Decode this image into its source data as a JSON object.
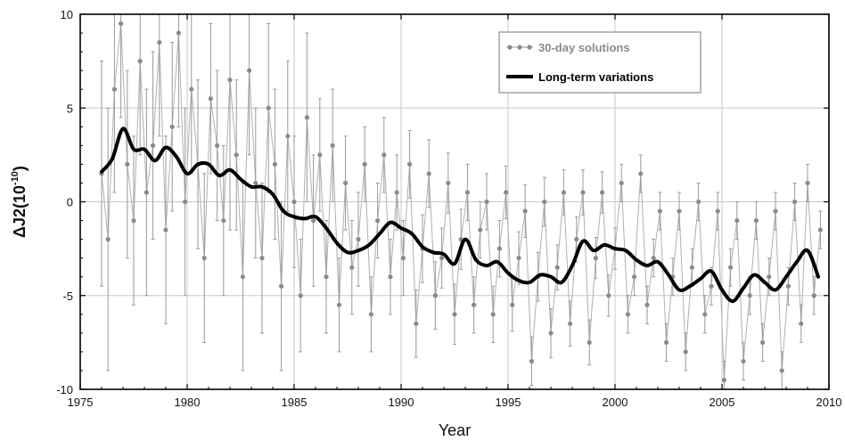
{
  "chart_data": {
    "type": "line",
    "xlabel": "Year",
    "ylabel": "ΔJ2(10",
    "ylabel_exponent": "-10",
    "ylabel_close": ")",
    "xlim": [
      1975,
      2010
    ],
    "ylim": [
      -10,
      10
    ],
    "x_ticks": [
      1975,
      1980,
      1985,
      1990,
      1995,
      2000,
      2005,
      2010
    ],
    "y_ticks": [
      -10,
      -5,
      0,
      5,
      10
    ],
    "x_tick_labels": [
      "1975",
      "1980",
      "1985",
      "1990",
      "1995",
      "2000",
      "2005",
      "2010"
    ],
    "y_tick_labels": [
      "-10",
      "-5",
      "0",
      "5",
      "10"
    ],
    "grid": true,
    "legend_position": "top-right",
    "series": [
      {
        "name": "30-day solutions",
        "style": "gray points with error bars",
        "color": "#8a8a8a",
        "x": [
          1976.0,
          1976.3,
          1976.6,
          1976.9,
          1977.2,
          1977.5,
          1977.8,
          1978.1,
          1978.4,
          1978.7,
          1979.0,
          1979.3,
          1979.6,
          1979.9,
          1980.2,
          1980.5,
          1980.8,
          1981.1,
          1981.4,
          1981.7,
          1982.0,
          1982.3,
          1982.6,
          1982.9,
          1983.2,
          1983.5,
          1983.8,
          1984.1,
          1984.4,
          1984.7,
          1985.0,
          1985.3,
          1985.6,
          1985.9,
          1986.2,
          1986.5,
          1986.8,
          1987.1,
          1987.4,
          1987.7,
          1988.0,
          1988.3,
          1988.6,
          1988.9,
          1989.2,
          1989.5,
          1989.8,
          1990.1,
          1990.4,
          1990.7,
          1991.0,
          1991.3,
          1991.6,
          1991.9,
          1992.2,
          1992.5,
          1992.8,
          1993.1,
          1993.4,
          1993.7,
          1994.0,
          1994.3,
          1994.6,
          1994.9,
          1995.2,
          1995.5,
          1995.8,
          1996.1,
          1996.4,
          1996.7,
          1997.0,
          1997.3,
          1997.6,
          1997.9,
          1998.2,
          1998.5,
          1998.8,
          1999.1,
          1999.4,
          1999.7,
          2000.0,
          2000.3,
          2000.6,
          2000.9,
          2001.2,
          2001.5,
          2001.8,
          2002.1,
          2002.4,
          2002.7,
          2003.0,
          2003.3,
          2003.6,
          2003.9,
          2004.2,
          2004.5,
          2004.8,
          2005.1,
          2005.4,
          2005.7,
          2006.0,
          2006.3,
          2006.6,
          2006.9,
          2007.2,
          2007.5,
          2007.8,
          2008.1,
          2008.4,
          2008.7,
          2009.0,
          2009.3,
          2009.6
        ],
        "y": [
          1.5,
          -2.0,
          6.0,
          9.5,
          2.0,
          -1.0,
          7.5,
          0.5,
          3.0,
          8.5,
          -1.5,
          4.0,
          9.0,
          0.0,
          6.0,
          2.0,
          -3.0,
          5.5,
          3.0,
          -1.0,
          6.5,
          2.5,
          -4.0,
          7.0,
          1.0,
          -3.0,
          5.0,
          2.0,
          -4.5,
          3.5,
          0.0,
          -5.0,
          4.5,
          -1.0,
          2.5,
          -4.0,
          3.0,
          -5.5,
          1.0,
          -3.5,
          -2.0,
          2.0,
          -6.0,
          -1.0,
          2.5,
          -4.0,
          0.5,
          -3.0,
          2.0,
          -6.5,
          -2.5,
          1.5,
          -5.0,
          -3.0,
          1.0,
          -6.0,
          -2.0,
          0.5,
          -5.5,
          -1.5,
          0.0,
          -6.0,
          -2.5,
          0.5,
          -5.5,
          -3.0,
          -0.5,
          -8.5,
          -4.0,
          0.0,
          -7.0,
          -3.5,
          0.5,
          -6.5,
          -2.0,
          0.5,
          -7.5,
          -3.0,
          0.5,
          -5.0,
          -2.5,
          1.0,
          -6.0,
          -4.0,
          1.5,
          -5.5,
          -3.0,
          -0.5,
          -7.5,
          -4.0,
          -0.5,
          -8.0,
          -3.5,
          0.0,
          -6.0,
          -4.5,
          -0.5,
          -9.5,
          -3.5,
          -1.0,
          -8.5,
          -5.0,
          -1.0,
          -7.5,
          -4.0,
          -0.5,
          -9.0,
          -4.5,
          0.0,
          -6.5,
          1.0,
          -5.0,
          -1.5
        ],
        "error": [
          6.0,
          7.0,
          5.5,
          5.0,
          5.0,
          4.5,
          5.0,
          5.5,
          5.0,
          5.0,
          5.0,
          4.5,
          5.0,
          5.0,
          4.5,
          4.5,
          4.5,
          4.0,
          4.0,
          4.0,
          8.0,
          4.0,
          5.0,
          4.5,
          4.0,
          4.0,
          4.5,
          4.0,
          4.5,
          4.0,
          3.5,
          3.0,
          4.5,
          3.5,
          3.0,
          3.0,
          3.0,
          2.5,
          2.5,
          2.5,
          2.5,
          2.0,
          2.0,
          2.0,
          2.0,
          2.0,
          2.0,
          2.0,
          1.8,
          1.8,
          1.8,
          1.8,
          1.8,
          1.6,
          1.6,
          1.6,
          1.6,
          1.5,
          1.5,
          1.5,
          1.5,
          1.5,
          1.5,
          1.4,
          1.4,
          1.4,
          1.4,
          1.3,
          1.3,
          1.3,
          1.3,
          1.2,
          1.2,
          1.2,
          1.2,
          1.2,
          1.2,
          1.1,
          1.1,
          1.1,
          1.1,
          1.0,
          1.0,
          1.0,
          1.0,
          1.0,
          1.0,
          1.0,
          1.0,
          1.0,
          1.0,
          1.0,
          1.0,
          1.0,
          1.0,
          1.0,
          1.0,
          1.0,
          1.0,
          1.0,
          1.0,
          1.0,
          1.0,
          1.0,
          1.0,
          1.0,
          1.0,
          1.0,
          1.0,
          1.0,
          1.0,
          1.0,
          1.0
        ]
      },
      {
        "name": "Long-term variations",
        "style": "thick black line",
        "color": "#000000",
        "x": [
          1976.0,
          1976.5,
          1977.0,
          1977.5,
          1978.0,
          1978.5,
          1979.0,
          1979.5,
          1980.0,
          1980.5,
          1981.0,
          1981.5,
          1982.0,
          1982.5,
          1983.0,
          1983.5,
          1984.0,
          1984.5,
          1985.0,
          1985.5,
          1986.0,
          1986.5,
          1987.0,
          1987.5,
          1988.0,
          1988.5,
          1989.0,
          1989.5,
          1990.0,
          1990.5,
          1991.0,
          1991.5,
          1992.0,
          1992.5,
          1993.0,
          1993.5,
          1994.0,
          1994.5,
          1995.0,
          1995.5,
          1996.0,
          1996.5,
          1997.0,
          1997.5,
          1998.0,
          1998.5,
          1999.0,
          1999.5,
          2000.0,
          2000.5,
          2001.0,
          2001.5,
          2002.0,
          2002.5,
          2003.0,
          2003.5,
          2004.0,
          2004.5,
          2005.0,
          2005.5,
          2006.0,
          2006.5,
          2007.0,
          2007.5,
          2008.0,
          2008.5,
          2009.0,
          2009.5
        ],
        "y": [
          1.6,
          2.3,
          3.9,
          2.8,
          2.8,
          2.2,
          2.9,
          2.4,
          1.5,
          2.0,
          2.0,
          1.4,
          1.7,
          1.2,
          0.8,
          0.8,
          0.4,
          -0.5,
          -0.8,
          -0.9,
          -0.8,
          -1.4,
          -2.2,
          -2.7,
          -2.6,
          -2.3,
          -1.7,
          -1.1,
          -1.4,
          -1.7,
          -2.4,
          -2.7,
          -2.8,
          -3.3,
          -2.0,
          -3.1,
          -3.4,
          -3.2,
          -3.8,
          -4.2,
          -4.3,
          -3.9,
          -4.0,
          -4.3,
          -3.4,
          -2.1,
          -2.6,
          -2.3,
          -2.5,
          -2.6,
          -3.1,
          -3.4,
          -3.2,
          -3.9,
          -4.7,
          -4.5,
          -4.1,
          -3.7,
          -4.7,
          -5.3,
          -4.6,
          -3.9,
          -4.3,
          -4.7,
          -4.0,
          -3.2,
          -2.6,
          -4.0
        ]
      }
    ]
  }
}
